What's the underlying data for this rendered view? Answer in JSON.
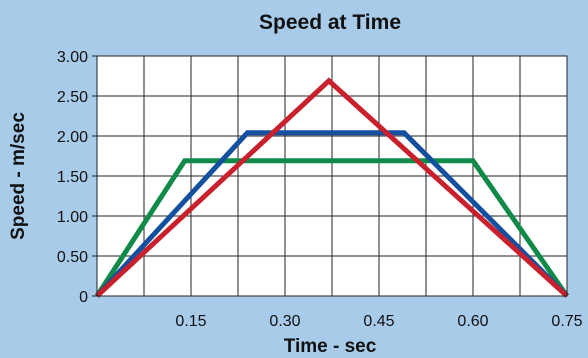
{
  "chart_data": {
    "type": "line",
    "title": "Speed at Time",
    "xlabel": "Time - sec",
    "ylabel": "Speed - m/sec",
    "xlim": [
      0,
      0.75
    ],
    "ylim": [
      0,
      3.0
    ],
    "x_ticks": [
      0.15,
      0.3,
      0.45,
      0.6,
      0.75
    ],
    "x_tick_labels": [
      "0.15",
      "0.30",
      "0.45",
      "0.60",
      "0.75"
    ],
    "x_grid_step": 0.075,
    "y_ticks": [
      0,
      0.5,
      1.0,
      1.5,
      2.0,
      2.5,
      3.0
    ],
    "y_tick_labels": [
      "0",
      "0.50",
      "1.00",
      "1.50",
      "2.00",
      "2.50",
      "3.00"
    ],
    "grid": true,
    "legend": "none",
    "series": [
      {
        "color": "#0f8a48",
        "points": [
          [
            0,
            0
          ],
          [
            0.14,
            1.69
          ],
          [
            0.6,
            1.69
          ],
          [
            0.75,
            0
          ]
        ]
      },
      {
        "color": "#1450a0",
        "points": [
          [
            0,
            0
          ],
          [
            0.24,
            2.04
          ],
          [
            0.49,
            2.04
          ],
          [
            0.75,
            0
          ]
        ]
      },
      {
        "color": "#c8202c",
        "points": [
          [
            0,
            0
          ],
          [
            0.37,
            2.69
          ],
          [
            0.75,
            0
          ]
        ]
      }
    ]
  }
}
